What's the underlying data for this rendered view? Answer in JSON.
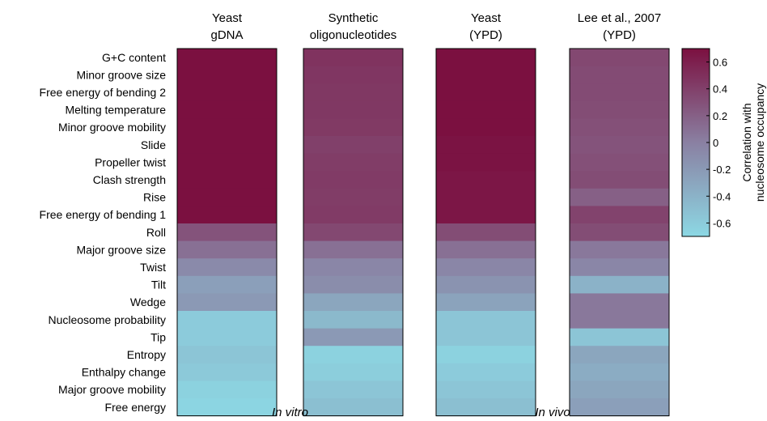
{
  "chart_data": {
    "type": "heatmap",
    "columns": [
      {
        "line1": "Yeast",
        "line2": "gDNA"
      },
      {
        "line1": "Synthetic",
        "line2": "oligonucleotides"
      },
      {
        "line1": "Yeast",
        "line2": "(YPD)"
      },
      {
        "line1": "Lee et al., 2007",
        "line2": "(YPD)"
      }
    ],
    "rows": [
      "G+C content",
      "Minor groove size",
      "Free energy of bending 2",
      "Melting temperature",
      "Minor groove mobility",
      "Slide",
      "Propeller twist",
      "Clash strength",
      "Rise",
      "Free energy of bending 1",
      "Roll",
      "Major groove size",
      "Twist",
      "Tilt",
      "Wedge",
      "Nucleosome probability",
      "Tip",
      "Entropy",
      "Enthalpy change",
      "Major groove mobility",
      "Free energy"
    ],
    "values": [
      [
        0.7,
        0.48,
        0.7,
        0.35
      ],
      [
        0.7,
        0.46,
        0.7,
        0.33
      ],
      [
        0.7,
        0.45,
        0.7,
        0.33
      ],
      [
        0.7,
        0.45,
        0.7,
        0.32
      ],
      [
        0.7,
        0.44,
        0.7,
        0.3
      ],
      [
        0.7,
        0.4,
        0.68,
        0.28
      ],
      [
        0.7,
        0.42,
        0.68,
        0.3
      ],
      [
        0.7,
        0.43,
        0.66,
        0.32
      ],
      [
        0.7,
        0.42,
        0.66,
        0.2
      ],
      [
        0.7,
        0.43,
        0.66,
        0.38
      ],
      [
        0.28,
        0.35,
        0.32,
        0.32
      ],
      [
        0.1,
        0.1,
        0.1,
        0.05
      ],
      [
        -0.08,
        -0.05,
        -0.05,
        -0.05
      ],
      [
        -0.25,
        -0.1,
        -0.15,
        -0.4
      ],
      [
        -0.2,
        -0.3,
        -0.28,
        0.05
      ],
      [
        -0.6,
        -0.45,
        -0.55,
        0.05
      ],
      [
        -0.6,
        -0.2,
        -0.55,
        -0.55
      ],
      [
        -0.55,
        -0.65,
        -0.65,
        -0.3
      ],
      [
        -0.58,
        -0.62,
        -0.6,
        -0.35
      ],
      [
        -0.65,
        -0.55,
        -0.55,
        -0.3
      ],
      [
        -0.68,
        -0.5,
        -0.5,
        -0.25
      ]
    ],
    "groups": [
      {
        "label": "In vitro",
        "columns": [
          0,
          1
        ]
      },
      {
        "label": "In vivo",
        "columns": [
          2,
          3
        ]
      }
    ],
    "colorbar": {
      "label_line1": "Correlation with",
      "label_line2": "nucleosome occupancy",
      "min": -0.7,
      "max": 0.7,
      "ticks": [
        "0.6",
        "0.4",
        "0.2",
        "0",
        "-0.2",
        "-0.4",
        "-0.6"
      ],
      "tick_values": [
        0.6,
        0.4,
        0.2,
        0,
        -0.2,
        -0.4,
        -0.6
      ],
      "color_low": "#8cd8e4",
      "color_mid": "#8a80a2",
      "color_high": "#7b1040"
    }
  }
}
